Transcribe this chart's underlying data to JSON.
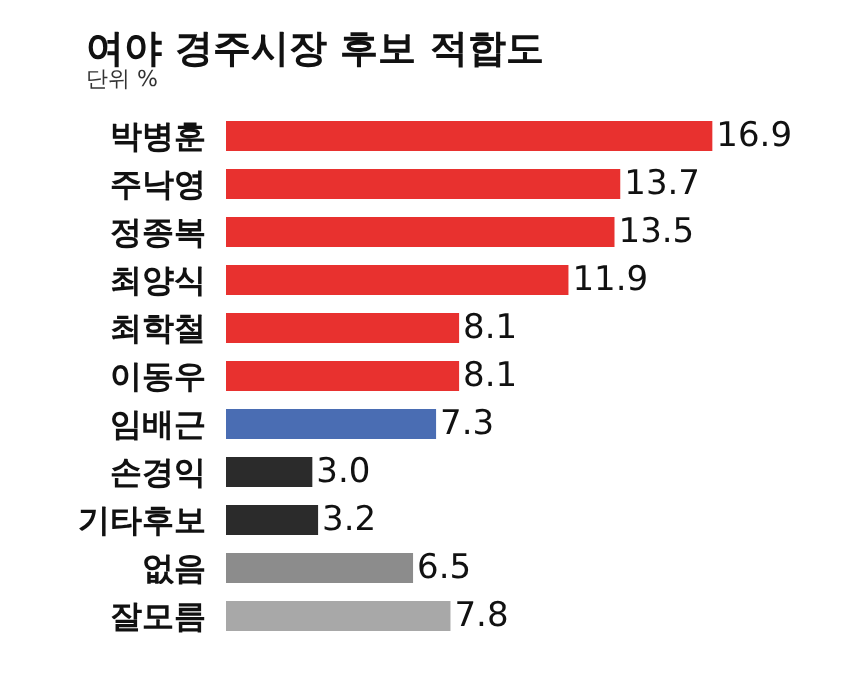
{
  "chart_data": {
    "type": "bar",
    "orientation": "horizontal",
    "title": "여야 경주시장 후보 적합도",
    "subtitle": "단위 %",
    "categories": [
      "박병훈",
      "주낙영",
      "정종복",
      "최양식",
      "최학철",
      "이동우",
      "임배근",
      "손경익",
      "기타후보",
      "없음",
      "잘모름"
    ],
    "values": [
      16.9,
      13.7,
      13.5,
      11.9,
      8.1,
      8.1,
      7.3,
      3.0,
      3.2,
      6.5,
      7.8
    ],
    "value_labels": [
      "16.9",
      "13.7",
      "13.5",
      "11.9",
      "8.1",
      "8.1",
      "7.3",
      "3.0",
      "3.2",
      "6.5",
      "7.8"
    ],
    "colors": [
      "#e8312f",
      "#e8312f",
      "#e8312f",
      "#e8312f",
      "#e8312f",
      "#e8312f",
      "#4a6db3",
      "#2b2b2b",
      "#2b2b2b",
      "#8c8c8c",
      "#a8a8a8"
    ],
    "tick_labels": "y",
    "grid": false
  }
}
